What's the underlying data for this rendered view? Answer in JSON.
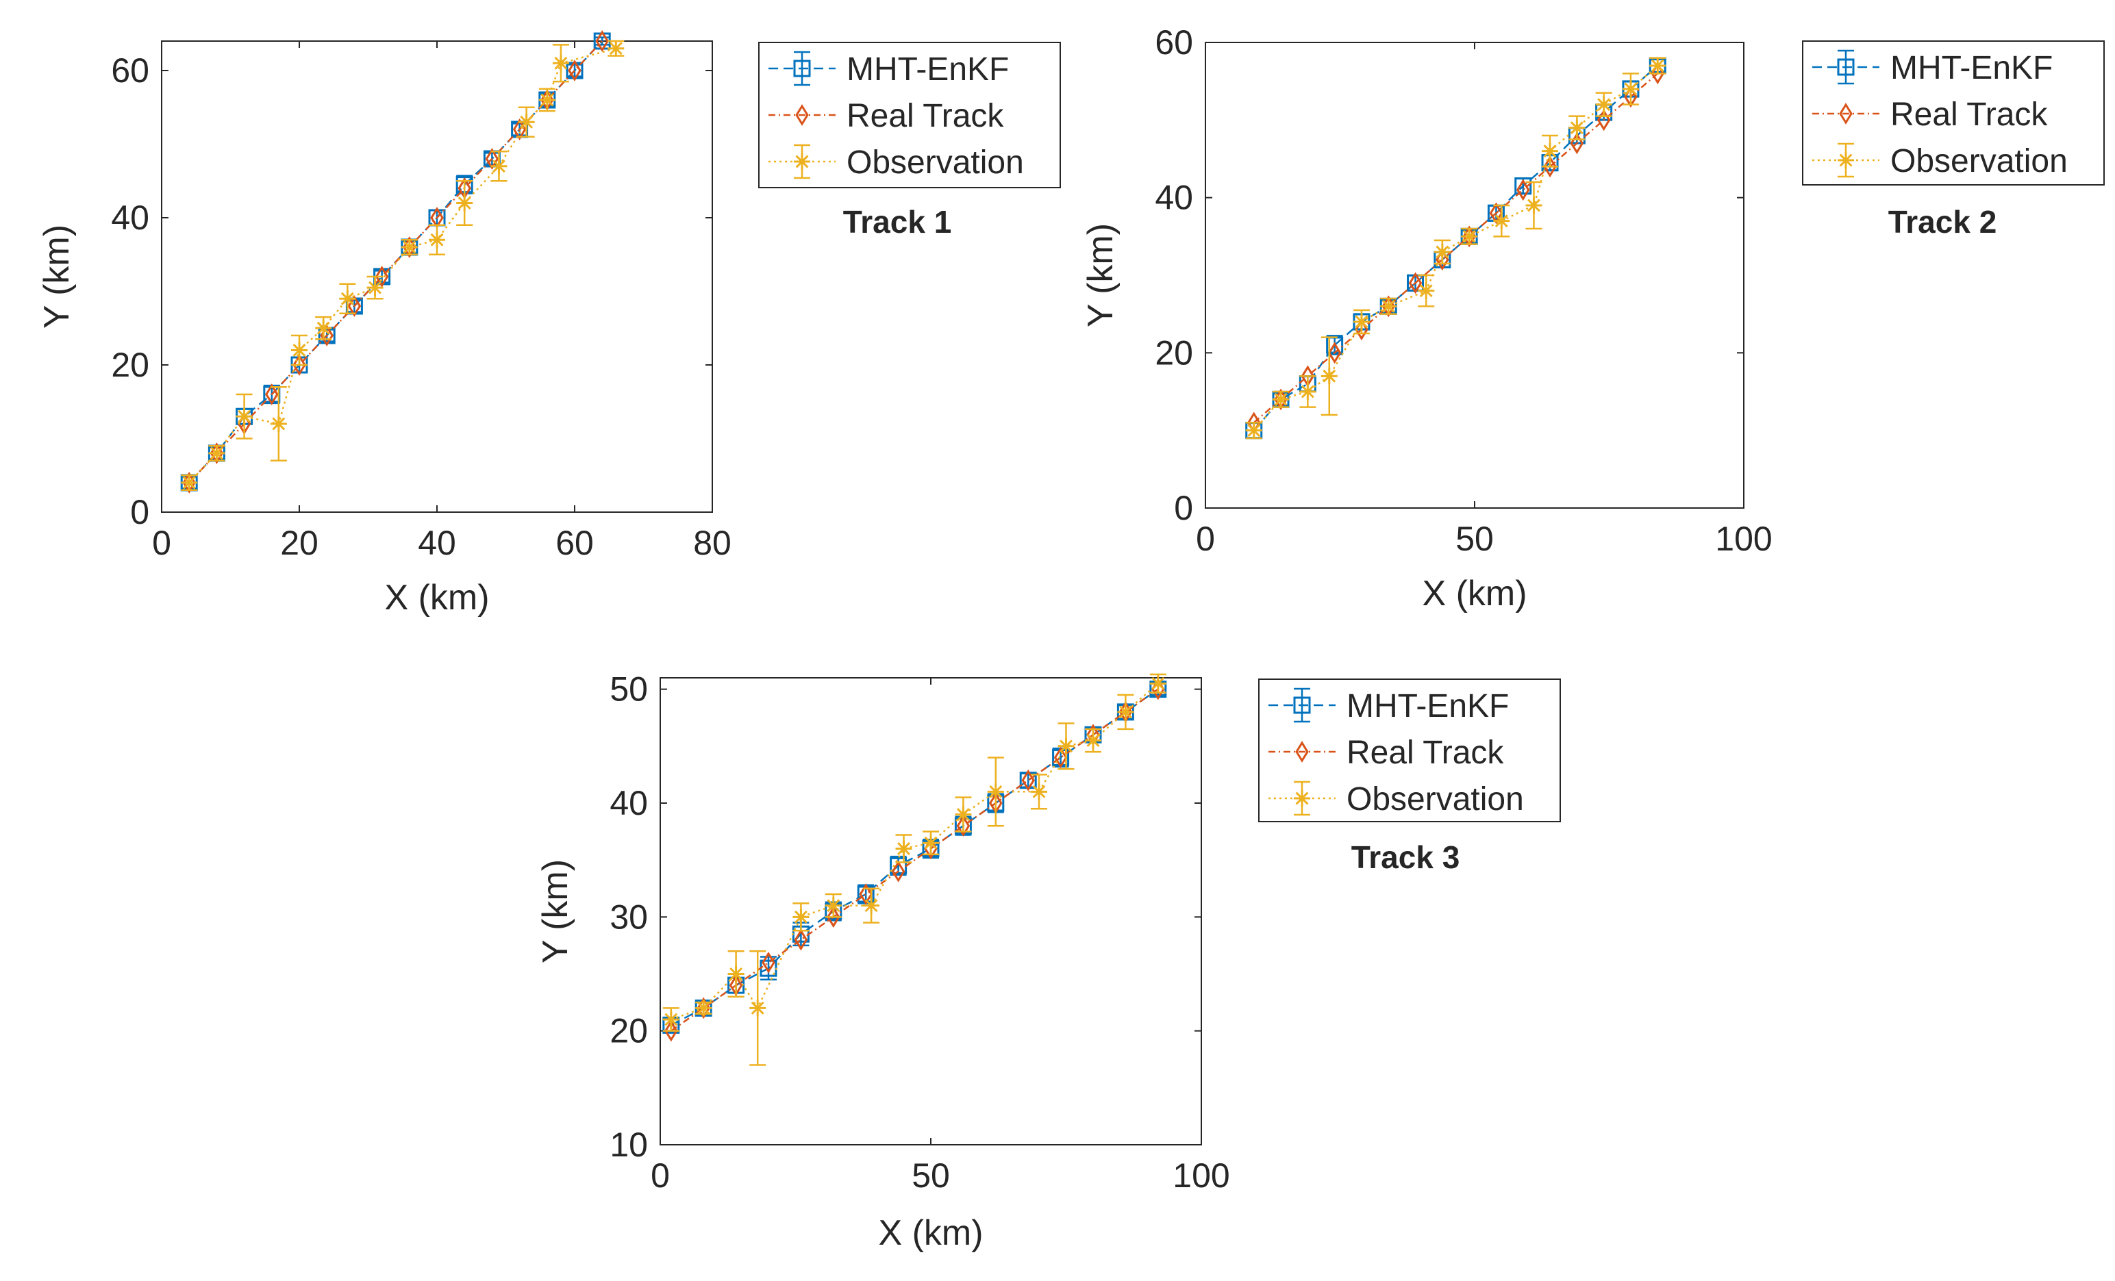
{
  "colors": {
    "mht": "#0072BD",
    "real": "#D95319",
    "obs": "#EDB120"
  },
  "legend": {
    "mht_label": "MHT-EnKF",
    "real_label": "Real Track",
    "obs_label": "Observation"
  },
  "chart_data": [
    {
      "type": "line",
      "title": "Track 1",
      "xlabel": "X (km)",
      "ylabel": "Y (km)",
      "xlim": [
        0,
        80
      ],
      "ylim": [
        0,
        64
      ],
      "xticks": [
        0,
        20,
        40,
        60,
        80
      ],
      "yticks": [
        0,
        20,
        40,
        60
      ],
      "series": [
        {
          "name": "MHT-EnKF",
          "x": [
            4,
            8,
            12,
            16,
            20,
            24,
            28,
            32,
            36,
            40,
            44,
            48,
            52,
            56,
            60,
            64
          ],
          "y": [
            4,
            8,
            13,
            16,
            20,
            24,
            28,
            32,
            36,
            40,
            44.5,
            48,
            52,
            56,
            60,
            64
          ],
          "err": [
            0.8,
            0.8,
            1,
            1.2,
            1,
            0.8,
            0.8,
            0.8,
            0.8,
            1,
            1.2,
            0.8,
            0.8,
            0.8,
            0.8,
            0.5
          ]
        },
        {
          "name": "Real Track",
          "x": [
            4,
            8,
            12,
            16,
            20,
            24,
            28,
            32,
            36,
            40,
            44,
            48,
            52,
            56,
            60,
            64
          ],
          "y": [
            4,
            8,
            12,
            16,
            20,
            24,
            28,
            32,
            36,
            40,
            44,
            48,
            52,
            56,
            60,
            64
          ]
        },
        {
          "name": "Observation",
          "x": [
            4,
            8,
            12,
            17,
            20,
            23.5,
            27,
            31,
            36,
            40,
            44,
            49,
            53,
            56,
            58,
            66
          ],
          "y": [
            4,
            8,
            13,
            12,
            22,
            25,
            29,
            30.5,
            36,
            37,
            42,
            47,
            53,
            56,
            61,
            63
          ],
          "err": [
            1,
            1,
            3,
            5,
            2,
            1.5,
            2,
            1.5,
            1,
            2,
            3,
            2,
            2,
            1.5,
            2.5,
            1
          ]
        }
      ]
    },
    {
      "type": "line",
      "title": "Track 2",
      "xlabel": "X (km)",
      "ylabel": "Y (km)",
      "xlim": [
        0,
        100
      ],
      "ylim": [
        0,
        60
      ],
      "xticks": [
        0,
        50,
        100
      ],
      "yticks": [
        0,
        20,
        40,
        60
      ],
      "series": [
        {
          "name": "MHT-EnKF",
          "x": [
            9,
            14,
            19,
            24,
            29,
            34,
            39,
            44,
            49,
            54,
            59,
            64,
            69,
            74,
            79,
            84
          ],
          "y": [
            10,
            14,
            16,
            21,
            24,
            26,
            29,
            32,
            35,
            38,
            41.5,
            44.5,
            48,
            51,
            54,
            57
          ],
          "err": [
            1,
            0.8,
            1,
            1.2,
            1,
            0.8,
            1,
            1,
            0.8,
            1,
            1,
            1,
            1,
            1,
            1,
            0.8
          ]
        },
        {
          "name": "Real Track",
          "x": [
            9,
            14,
            19,
            24,
            29,
            34,
            39,
            44,
            49,
            54,
            59,
            64,
            69,
            74,
            79,
            84
          ],
          "y": [
            11,
            14,
            17,
            20,
            23,
            26,
            29,
            32,
            35,
            38,
            41,
            44,
            47,
            50,
            53,
            56
          ]
        },
        {
          "name": "Observation",
          "x": [
            9,
            14,
            19,
            23,
            29,
            34,
            41,
            44,
            49,
            55,
            61,
            64,
            69,
            74,
            79,
            84
          ],
          "y": [
            10,
            14,
            15,
            17,
            24,
            26,
            28,
            33,
            35,
            37,
            39,
            46,
            49,
            52,
            54,
            57
          ],
          "err": [
            1,
            1,
            2,
            5,
            1.5,
            1,
            2,
            1.5,
            1,
            2,
            3,
            2,
            1.5,
            1.5,
            2,
            1
          ]
        }
      ]
    },
    {
      "type": "line",
      "title": "Track 3",
      "xlabel": "X (km)",
      "ylabel": "Y (km)",
      "xlim": [
        0,
        100
      ],
      "ylim": [
        10,
        51
      ],
      "xticks": [
        0,
        50,
        100
      ],
      "yticks": [
        10,
        20,
        30,
        40,
        50
      ],
      "series": [
        {
          "name": "MHT-EnKF",
          "x": [
            2,
            8,
            14,
            20,
            26,
            32,
            38,
            44,
            50,
            56,
            62,
            68,
            74,
            80,
            86,
            92
          ],
          "y": [
            20.5,
            22,
            24,
            25.5,
            28.5,
            30.5,
            32,
            34.5,
            36,
            38,
            40,
            42,
            44,
            46,
            48,
            50
          ],
          "err": [
            0.5,
            0.5,
            1,
            1,
            1,
            0.8,
            0.8,
            0.8,
            0.8,
            0.8,
            0.8,
            0.6,
            0.8,
            0.6,
            0.6,
            0.5
          ]
        },
        {
          "name": "Real Track",
          "x": [
            2,
            8,
            14,
            20,
            26,
            32,
            38,
            44,
            50,
            56,
            62,
            68,
            74,
            80,
            86,
            92
          ],
          "y": [
            20,
            22,
            24,
            26,
            28,
            30,
            32,
            34,
            36,
            38,
            40,
            42,
            44,
            46,
            48,
            50
          ]
        },
        {
          "name": "Observation",
          "x": [
            2,
            8,
            14,
            18,
            26,
            32,
            39,
            45,
            50,
            56,
            62,
            70,
            75,
            80,
            86,
            92
          ],
          "y": [
            21,
            22,
            25,
            22,
            30,
            31,
            31,
            36,
            36.5,
            39,
            41,
            41,
            45,
            45.5,
            48,
            50.5
          ],
          "err": [
            1,
            0.5,
            2,
            5,
            1.2,
            1,
            1.5,
            1.2,
            1,
            1.5,
            3,
            1.5,
            2,
            1,
            1.5,
            0.8
          ]
        }
      ]
    }
  ]
}
